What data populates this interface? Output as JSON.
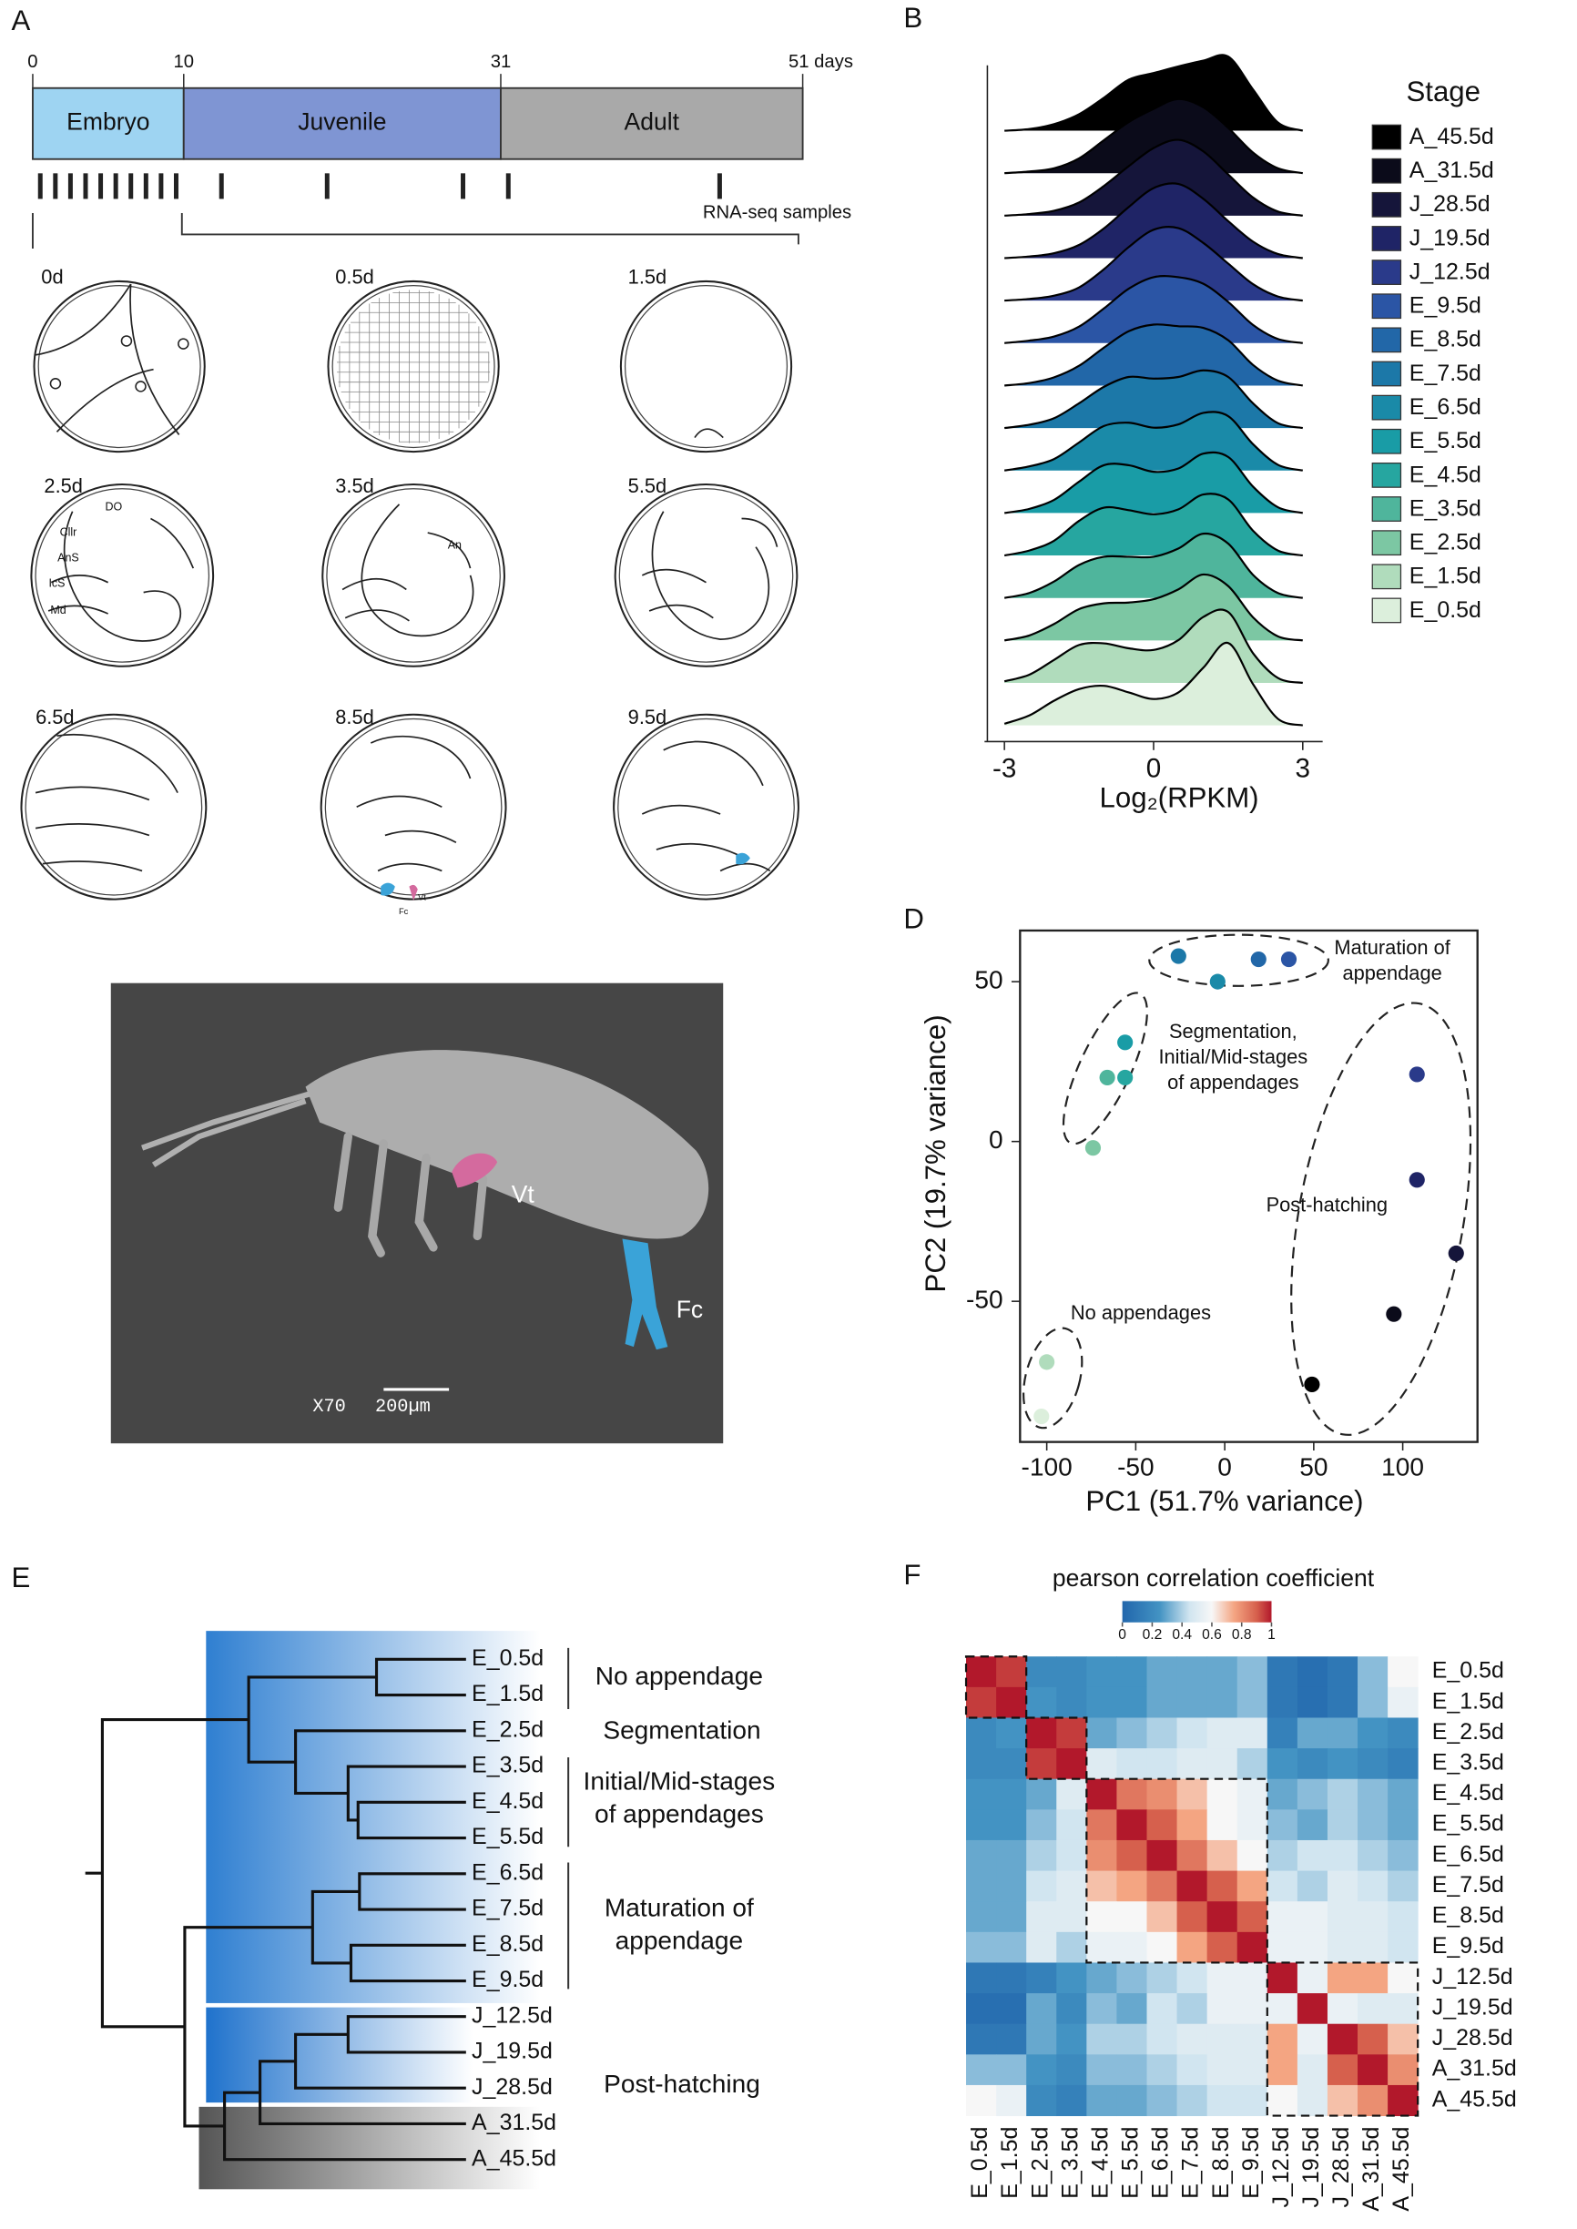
{
  "panel_labels": [
    "A",
    "B",
    "D",
    "E",
    "F"
  ],
  "timeline": {
    "xlim": [
      0,
      51
    ],
    "xticks": [
      0,
      10,
      31,
      {
        "value": 51,
        "label": "51 days"
      }
    ],
    "phases": [
      {
        "name": "Embryo",
        "start": 0,
        "end": 10,
        "color": "#9ed4f2"
      },
      {
        "name": "Juvenile",
        "start": 10,
        "end": 31,
        "color": "#7f95d3"
      },
      {
        "name": "Adult",
        "start": 31,
        "end": 51,
        "color": "#a9a9a9"
      }
    ],
    "samples": [
      0.5,
      1.5,
      2.5,
      3.5,
      4.5,
      5.5,
      6.5,
      7.5,
      8.5,
      9.5,
      12.5,
      19.5,
      28.5,
      31.5,
      45.5
    ],
    "samples_label": "RNA-seq samples"
  },
  "drawings": [
    {
      "label": "0d",
      "notes": []
    },
    {
      "label": "0.5d",
      "notes": []
    },
    {
      "label": "1.5d",
      "notes": []
    },
    {
      "label": "2.5d",
      "notes": [
        "DO",
        "Cllr",
        "AnS",
        "IcS",
        "Md"
      ]
    },
    {
      "label": "3.5d",
      "notes": [
        "An"
      ]
    },
    {
      "label": "5.5d",
      "notes": []
    },
    {
      "label": "6.5d",
      "notes": []
    },
    {
      "label": "8.5d",
      "notes": [
        "Vt",
        "Fc"
      ]
    },
    {
      "label": "9.5d",
      "notes": []
    }
  ],
  "sem": {
    "labels": [
      "Vt",
      "Fc"
    ],
    "magnification": "X70",
    "scale": "200µm"
  },
  "chart_data": [
    {
      "type": "ridgeline",
      "x": [
        -3,
        -2.5,
        -2,
        -1.5,
        -1,
        -0.5,
        0,
        0.5,
        1,
        1.5,
        2,
        2.5,
        3
      ],
      "xlim": [
        -3.4,
        3.4
      ],
      "xticks": [
        -3,
        0,
        3
      ],
      "xlabel": "Log₂(RPKM)",
      "legend_title": "Stage",
      "series": [
        {
          "name": "A_45.5d",
          "color": "#000000",
          "values": [
            0,
            0.02,
            0.08,
            0.2,
            0.4,
            0.62,
            0.7,
            0.78,
            0.85,
            0.9,
            0.5,
            0.1,
            0
          ]
        },
        {
          "name": "A_31.5d",
          "color": "#0b0b1a",
          "values": [
            0,
            0.02,
            0.06,
            0.18,
            0.4,
            0.62,
            0.78,
            0.9,
            0.8,
            0.55,
            0.25,
            0.06,
            0
          ]
        },
        {
          "name": "J_28.5d",
          "color": "#15153a",
          "values": [
            0,
            0.02,
            0.06,
            0.16,
            0.36,
            0.6,
            0.82,
            0.92,
            0.78,
            0.5,
            0.22,
            0.05,
            0
          ]
        },
        {
          "name": "J_19.5d",
          "color": "#1f2466",
          "values": [
            0,
            0.02,
            0.06,
            0.16,
            0.36,
            0.62,
            0.85,
            0.9,
            0.72,
            0.45,
            0.2,
            0.05,
            0
          ]
        },
        {
          "name": "J_12.5d",
          "color": "#2a3a8a",
          "values": [
            0,
            0.02,
            0.06,
            0.16,
            0.38,
            0.65,
            0.86,
            0.88,
            0.7,
            0.45,
            0.2,
            0.05,
            0
          ]
        },
        {
          "name": "E_9.5d",
          "color": "#2b55a5",
          "values": [
            0,
            0.03,
            0.08,
            0.2,
            0.42,
            0.66,
            0.8,
            0.8,
            0.72,
            0.5,
            0.22,
            0.05,
            0
          ]
        },
        {
          "name": "E_8.5d",
          "color": "#2267a8",
          "values": [
            0,
            0.03,
            0.1,
            0.24,
            0.46,
            0.66,
            0.74,
            0.72,
            0.7,
            0.55,
            0.25,
            0.06,
            0
          ]
        },
        {
          "name": "E_7.5d",
          "color": "#1c78a8",
          "values": [
            0,
            0.04,
            0.12,
            0.3,
            0.5,
            0.62,
            0.6,
            0.62,
            0.7,
            0.62,
            0.3,
            0.06,
            0
          ]
        },
        {
          "name": "E_6.5d",
          "color": "#1a8aa8",
          "values": [
            0,
            0.05,
            0.14,
            0.34,
            0.54,
            0.58,
            0.52,
            0.56,
            0.7,
            0.66,
            0.32,
            0.07,
            0
          ]
        },
        {
          "name": "E_5.5d",
          "color": "#199ca6",
          "values": [
            0,
            0.05,
            0.16,
            0.38,
            0.58,
            0.58,
            0.5,
            0.54,
            0.72,
            0.68,
            0.32,
            0.07,
            0
          ]
        },
        {
          "name": "E_4.5d",
          "color": "#26a6a0",
          "values": [
            0,
            0.06,
            0.18,
            0.42,
            0.58,
            0.55,
            0.5,
            0.56,
            0.74,
            0.68,
            0.3,
            0.06,
            0
          ]
        },
        {
          "name": "E_3.5d",
          "color": "#4fb59c",
          "values": [
            0,
            0.06,
            0.2,
            0.4,
            0.5,
            0.5,
            0.5,
            0.6,
            0.78,
            0.66,
            0.28,
            0.06,
            0
          ]
        },
        {
          "name": "E_2.5d",
          "color": "#7cc7a3",
          "values": [
            0,
            0.06,
            0.2,
            0.38,
            0.45,
            0.46,
            0.5,
            0.62,
            0.8,
            0.66,
            0.28,
            0.05,
            0
          ]
        },
        {
          "name": "E_1.5d",
          "color": "#b0dcbc",
          "values": [
            0.02,
            0.1,
            0.28,
            0.46,
            0.48,
            0.42,
            0.4,
            0.52,
            0.8,
            0.86,
            0.36,
            0.06,
            0
          ]
        },
        {
          "name": "E_0.5d",
          "color": "#dcefdc",
          "values": [
            0.02,
            0.12,
            0.3,
            0.44,
            0.48,
            0.4,
            0.32,
            0.4,
            0.7,
            1.0,
            0.5,
            0.08,
            0
          ]
        }
      ]
    },
    {
      "type": "scatter",
      "xlabel": "PC1 (51.7% variance)",
      "ylabel": "PC2 (19.7% variance)",
      "xlim": [
        -115,
        142
      ],
      "ylim": [
        -94,
        66
      ],
      "xticks": [
        -100,
        -50,
        0,
        50,
        100
      ],
      "yticks": [
        -50,
        0,
        50
      ],
      "x": [
        -103,
        -100,
        -74,
        -66,
        -56,
        -56,
        -4,
        -26,
        19,
        36,
        108,
        108,
        130,
        95,
        49
      ],
      "y": [
        -86,
        -69,
        -2,
        20,
        20,
        31,
        50,
        58,
        57,
        57,
        21,
        -12,
        -35,
        -54,
        -76
      ],
      "colors": [
        "#dcefdc",
        "#b0dcbc",
        "#7cc7a3",
        "#4fb59c",
        "#26a6a0",
        "#199ca6",
        "#1a8aa8",
        "#1c78a8",
        "#2267a8",
        "#2b55a5",
        "#2a3a8a",
        "#1f2466",
        "#15153a",
        "#0b0b1a",
        "#000000"
      ],
      "annotations": [
        [
          "Maturation of",
          "appendage"
        ],
        [
          "Segmentation,",
          "Initial/Mid-stages",
          "of appendages"
        ],
        [
          "Post-hatching"
        ],
        [
          "No appendages"
        ]
      ]
    },
    {
      "type": "dendrogram",
      "leaves": [
        "E_0.5d",
        "E_1.5d",
        "E_2.5d",
        "E_3.5d",
        "E_4.5d",
        "E_5.5d",
        "E_6.5d",
        "E_7.5d",
        "E_8.5d",
        "E_9.5d",
        "J_12.5d",
        "J_19.5d",
        "J_28.5d",
        "A_31.5d",
        "A_45.5d"
      ],
      "groups": [
        [
          "No appendage"
        ],
        [
          "Segmentation"
        ],
        [
          "Initial/Mid-stages",
          "of appendages"
        ],
        [
          "Maturation of",
          "appendage"
        ],
        [
          "Post-hatching"
        ]
      ]
    },
    {
      "type": "heatmap",
      "title": "pearson correlation coefficient",
      "categories": [
        "E_0.5d",
        "E_1.5d",
        "E_2.5d",
        "E_3.5d",
        "E_4.5d",
        "E_5.5d",
        "E_6.5d",
        "E_7.5d",
        "E_8.5d",
        "E_9.5d",
        "J_12.5d",
        "J_19.5d",
        "J_28.5d",
        "A_31.5d",
        "A_45.5d"
      ],
      "colorbar_lim": [
        0,
        1
      ],
      "colorbar_ticks": [
        0,
        0.2,
        0.4,
        0.6,
        0.8,
        1
      ],
      "values": [
        [
          1,
          0.95,
          0.2,
          0.2,
          0.25,
          0.25,
          0.3,
          0.3,
          0.3,
          0.35,
          0.1,
          0.05,
          0.1,
          0.35,
          0.6
        ],
        [
          0.95,
          1,
          0.25,
          0.2,
          0.25,
          0.25,
          0.3,
          0.3,
          0.3,
          0.35,
          0.1,
          0.05,
          0.1,
          0.35,
          0.55
        ],
        [
          0.2,
          0.25,
          1,
          0.95,
          0.3,
          0.35,
          0.4,
          0.45,
          0.5,
          0.5,
          0.15,
          0.3,
          0.3,
          0.25,
          0.2
        ],
        [
          0.2,
          0.2,
          0.95,
          1,
          0.5,
          0.45,
          0.45,
          0.5,
          0.5,
          0.4,
          0.25,
          0.2,
          0.25,
          0.2,
          0.15
        ],
        [
          0.25,
          0.25,
          0.3,
          0.5,
          1,
          0.85,
          0.8,
          0.7,
          0.6,
          0.55,
          0.3,
          0.35,
          0.4,
          0.35,
          0.3
        ],
        [
          0.25,
          0.25,
          0.35,
          0.45,
          0.85,
          1,
          0.9,
          0.75,
          0.6,
          0.55,
          0.35,
          0.3,
          0.4,
          0.35,
          0.3
        ],
        [
          0.3,
          0.3,
          0.4,
          0.45,
          0.8,
          0.9,
          1,
          0.85,
          0.7,
          0.6,
          0.4,
          0.45,
          0.45,
          0.4,
          0.35
        ],
        [
          0.3,
          0.3,
          0.45,
          0.5,
          0.7,
          0.75,
          0.85,
          1,
          0.9,
          0.75,
          0.45,
          0.4,
          0.5,
          0.45,
          0.4
        ],
        [
          0.3,
          0.3,
          0.5,
          0.5,
          0.6,
          0.6,
          0.7,
          0.9,
          1,
          0.9,
          0.55,
          0.55,
          0.5,
          0.5,
          0.45
        ],
        [
          0.35,
          0.35,
          0.5,
          0.4,
          0.55,
          0.55,
          0.6,
          0.75,
          0.9,
          1,
          0.55,
          0.55,
          0.5,
          0.5,
          0.45
        ],
        [
          0.1,
          0.1,
          0.15,
          0.25,
          0.3,
          0.35,
          0.4,
          0.45,
          0.55,
          0.55,
          1,
          0.55,
          0.75,
          0.75,
          0.6
        ],
        [
          0.05,
          0.05,
          0.3,
          0.2,
          0.35,
          0.3,
          0.45,
          0.4,
          0.55,
          0.55,
          0.55,
          1,
          0.55,
          0.5,
          0.5
        ],
        [
          0.1,
          0.1,
          0.3,
          0.25,
          0.4,
          0.4,
          0.45,
          0.5,
          0.5,
          0.5,
          0.75,
          0.55,
          1,
          0.9,
          0.7
        ],
        [
          0.35,
          0.35,
          0.25,
          0.2,
          0.35,
          0.35,
          0.4,
          0.45,
          0.5,
          0.5,
          0.75,
          0.5,
          0.9,
          1,
          0.8
        ],
        [
          0.6,
          0.55,
          0.2,
          0.15,
          0.3,
          0.3,
          0.35,
          0.4,
          0.45,
          0.45,
          0.6,
          0.5,
          0.7,
          0.8,
          1
        ]
      ]
    }
  ]
}
